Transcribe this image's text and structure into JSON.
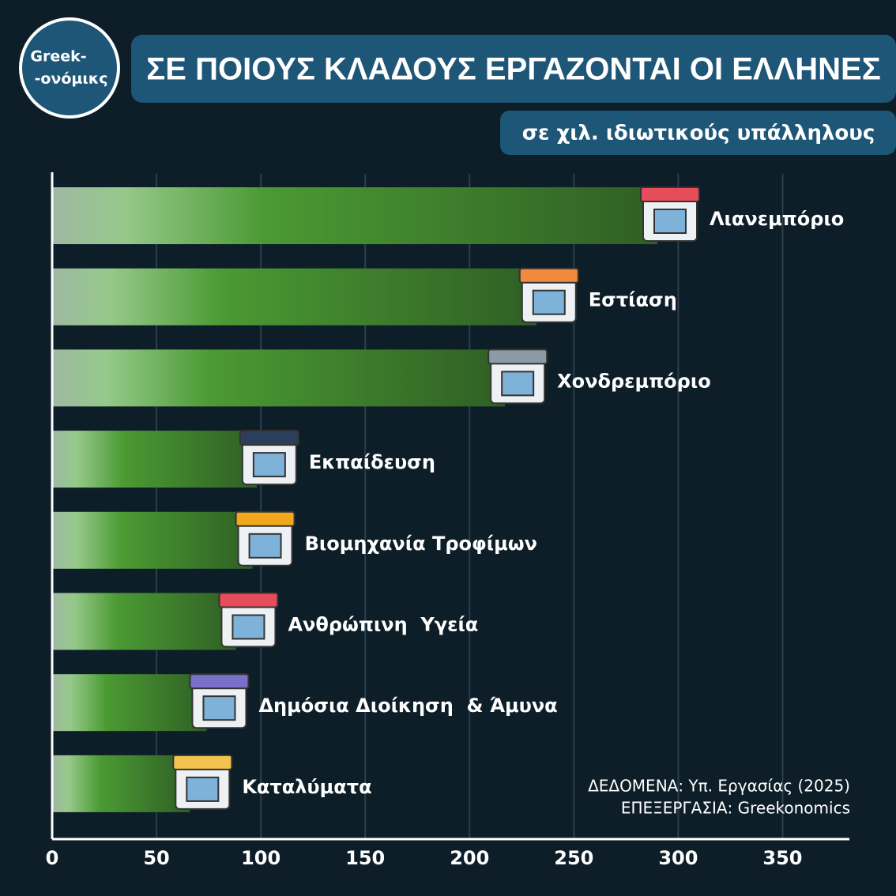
{
  "logo": [
    "Greek-",
    "-ονόμικς"
  ],
  "chart_data": {
    "type": "bar",
    "orientation": "horizontal",
    "title": "ΣΕ ΠΟΙΟΥΣ ΚΛΑΔΟΥΣ ΕΡΓΑΖΟΝΤΑΙ ΟΙ ΕΛΛΗΝΕΣ",
    "subtitle": "σε χιλ. ιδιωτικούς υπάλληλους",
    "categories": [
      "Λιανεμπόριο",
      "Εστίαση",
      "Χονδρεμπόριο",
      "Εκπαίδευση",
      "Βιομηχανία Τροφίμων",
      "Ανθρώπινη  Υγεία",
      "Δημόσια Διοίκηση  & Άμυνα",
      "Καταλύματα"
    ],
    "values": [
      290,
      232,
      217,
      98,
      96,
      88,
      74,
      66
    ],
    "xlim": [
      0,
      382
    ],
    "xticks": [
      0,
      50,
      100,
      150,
      200,
      250,
      300,
      350
    ],
    "grid": true,
    "source": [
      "ΔΕΔΟΜΕΝΑ: Υπ. Εργασίας (2025)",
      "ΕΠΕΞΕΡΓΑΣΙΑ: Greekonomics"
    ]
  }
}
